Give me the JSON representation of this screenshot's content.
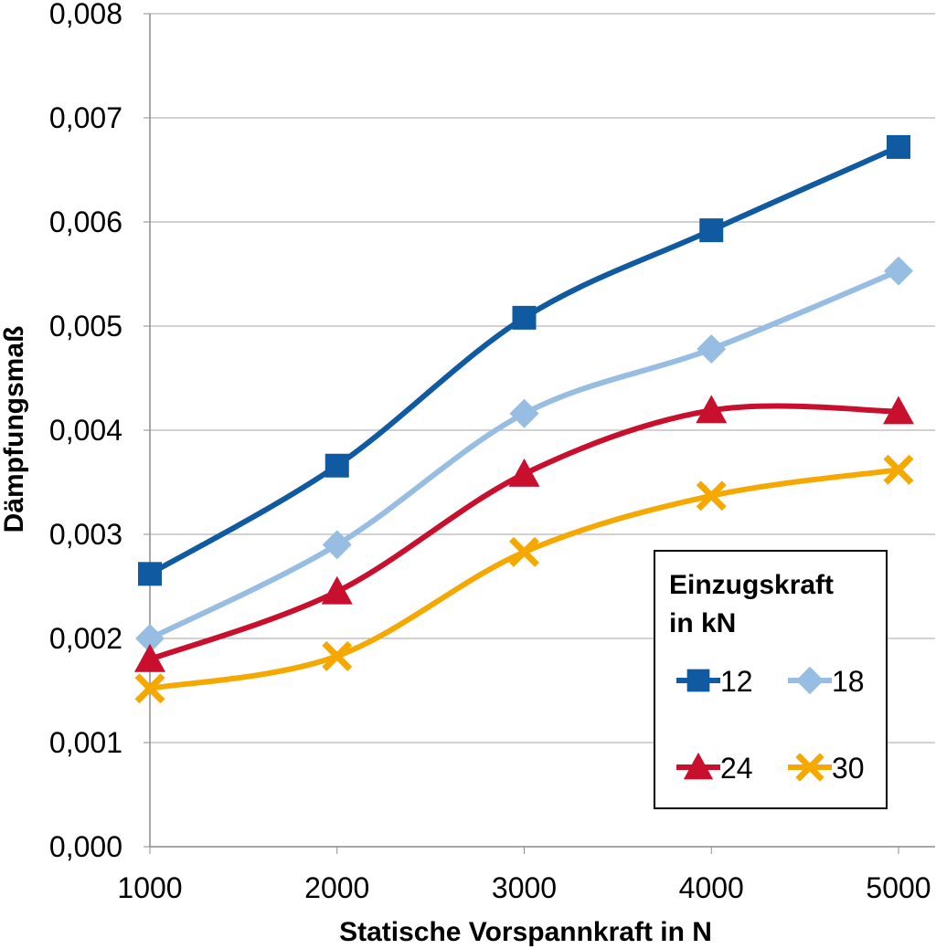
{
  "chart_data": {
    "type": "line",
    "smooth": true,
    "title": "",
    "xlabel": "Statische Vorspannkraft in N",
    "ylabel": "Dämpfungsmaß",
    "x": [
      1000,
      2000,
      3000,
      4000,
      5000
    ],
    "xlim": [
      1000,
      5000
    ],
    "ylim": [
      0,
      0.008
    ],
    "x_tick_labels": [
      "1000",
      "2000",
      "3000",
      "4000",
      "5000"
    ],
    "y_tick_values": [
      0,
      0.001,
      0.002,
      0.003,
      0.004,
      0.005,
      0.006,
      0.007,
      0.008
    ],
    "y_tick_labels": [
      "0,000",
      "0,001",
      "0,002",
      "0,003",
      "0,004",
      "0,005",
      "0,006",
      "0,007",
      "0,008"
    ],
    "grid": "horizontal",
    "legend": {
      "title_line1": "Einzugskraft",
      "title_line2": "in kN",
      "position": "bottom-right"
    },
    "series": [
      {
        "name": "12",
        "color": "#0F5AA0",
        "marker": "square",
        "values": [
          0.00262,
          0.00366,
          0.00508,
          0.00592,
          0.00672
        ]
      },
      {
        "name": "18",
        "color": "#97BDE2",
        "marker": "diamond",
        "values": [
          0.002,
          0.0029,
          0.00416,
          0.00478,
          0.00553
        ]
      },
      {
        "name": "24",
        "color": "#C8102E",
        "marker": "triangle",
        "values": [
          0.0018,
          0.00245,
          0.00358,
          0.00419,
          0.00418
        ]
      },
      {
        "name": "30",
        "color": "#F5A800",
        "marker": "x",
        "values": [
          0.00152,
          0.00183,
          0.00283,
          0.00337,
          0.00362
        ]
      }
    ]
  }
}
